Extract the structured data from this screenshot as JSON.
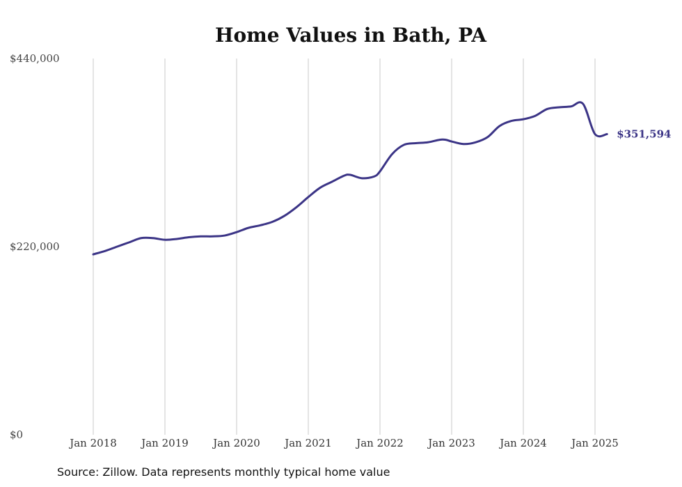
{
  "chart_data": {
    "type": "line",
    "title": "Home Values in Bath, PA",
    "xlabel": "",
    "ylabel": "",
    "ylim": [
      0,
      440000
    ],
    "y_ticks": [
      {
        "value": 0,
        "label": "$0"
      },
      {
        "value": 220000,
        "label": "$220,000"
      },
      {
        "value": 440000,
        "label": "$440,000"
      }
    ],
    "x_ticks": [
      {
        "value": 2018.0,
        "label": "Jan 2018"
      },
      {
        "value": 2019.0,
        "label": "Jan 2019"
      },
      {
        "value": 2020.0,
        "label": "Jan 2020"
      },
      {
        "value": 2021.0,
        "label": "Jan 2021"
      },
      {
        "value": 2022.0,
        "label": "Jan 2022"
      },
      {
        "value": 2023.0,
        "label": "Jan 2023"
      },
      {
        "value": 2024.0,
        "label": "Jan 2024"
      },
      {
        "value": 2025.0,
        "label": "Jan 2025"
      }
    ],
    "xlim": [
      2018.0,
      2025.25
    ],
    "grid": "vertical",
    "line_color": "#3b3486",
    "series": [
      {
        "end_label": "$351,594",
        "x": [
          2018.0,
          2018.167,
          2018.333,
          2018.5,
          2018.667,
          2018.833,
          2019.0,
          2019.167,
          2019.333,
          2019.5,
          2019.667,
          2019.833,
          2020.0,
          2020.167,
          2020.333,
          2020.5,
          2020.667,
          2020.833,
          2021.0,
          2021.167,
          2021.333,
          2021.5,
          2021.583,
          2021.75,
          2021.917,
          2022.0,
          2022.167,
          2022.333,
          2022.5,
          2022.667,
          2022.833,
          2022.917,
          2023.0,
          2023.167,
          2023.333,
          2023.5,
          2023.667,
          2023.833,
          2024.0,
          2024.167,
          2024.333,
          2024.5,
          2024.667,
          2024.833,
          2025.0,
          2025.167
        ],
        "values": [
          211000,
          215000,
          220000,
          225000,
          230000,
          230000,
          228000,
          229000,
          231000,
          232000,
          232000,
          233000,
          237000,
          242000,
          245000,
          249000,
          256000,
          266000,
          278000,
          289000,
          296000,
          303000,
          304000,
          300000,
          302000,
          308000,
          328000,
          339000,
          341000,
          342000,
          345000,
          345000,
          343000,
          340000,
          342000,
          348000,
          361000,
          367000,
          369000,
          373000,
          381000,
          383000,
          384000,
          387000,
          351594,
          351594
        ]
      }
    ]
  },
  "source": "Source: Zillow. Data represents monthly typical home value"
}
